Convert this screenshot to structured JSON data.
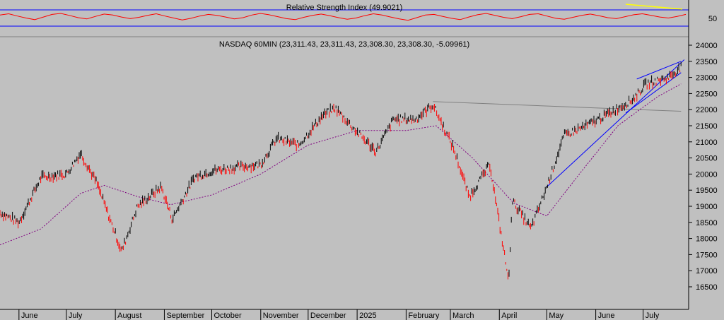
{
  "chart_data": [
    {
      "type": "line",
      "title": "Relative Strength Index (49.9021)",
      "indicator": "RSI",
      "current_value": 49.9021,
      "bands": [
        70,
        30
      ],
      "tick_labels": [
        "50"
      ],
      "colors": {
        "line": "#ff0000",
        "bands": "#0000ff",
        "trendline": "#ffff00"
      },
      "series": [
        {
          "name": "",
          "values": [
            58,
            62,
            55,
            49,
            44,
            52,
            60,
            63,
            57,
            50,
            46,
            54,
            61,
            58,
            52,
            47,
            51,
            57,
            62,
            55,
            49,
            43,
            48,
            55,
            60,
            57,
            52,
            46,
            50,
            58,
            63,
            59,
            53,
            47,
            44,
            51,
            57,
            61,
            56,
            50,
            45,
            49,
            56,
            62,
            58,
            52,
            46,
            42,
            50,
            58,
            60,
            54,
            48,
            44,
            52,
            59,
            63,
            57,
            51,
            47,
            53,
            60,
            62,
            55,
            48,
            45,
            51,
            57,
            61,
            56,
            50,
            47,
            53,
            59,
            62,
            57,
            52,
            49,
            54,
            60
          ]
        }
      ]
    },
    {
      "type": "line",
      "title": "NASDAQ 60MIN (23,311.43, 23,311.43, 23,308.30, 23,308.30, -5.09961)",
      "xlabel": "",
      "ylabel": "",
      "ylim": [
        16200,
        24200
      ],
      "yticks": [
        "24000",
        "23500",
        "23000",
        "22500",
        "22000",
        "21500",
        "21000",
        "20500",
        "20000",
        "19500",
        "19000",
        "18500",
        "18000",
        "17500",
        "17000",
        "16500"
      ],
      "x_labels": [
        "June",
        "July",
        "August",
        "September",
        "October",
        "November",
        "December",
        "2025",
        "February",
        "March",
        "April",
        "May",
        "June",
        "July"
      ],
      "grid": false,
      "colors": {
        "price": "#000000",
        "price_down": "#ff0000",
        "moving_average": "#800080",
        "trendlines": "#0000ff",
        "resistance": "#808080"
      },
      "series": [
        {
          "name": "",
          "x": [
            "2024-05-20",
            "2024-06-01",
            "2024-06-15",
            "2024-07-01",
            "2024-07-10",
            "2024-07-20",
            "2024-08-05",
            "2024-08-15",
            "2024-08-30",
            "2024-09-06",
            "2024-09-20",
            "2024-10-01",
            "2024-10-15",
            "2024-11-01",
            "2024-11-11",
            "2024-11-25",
            "2024-12-10",
            "2024-12-18",
            "2025-01-02",
            "2025-01-13",
            "2025-01-24",
            "2025-02-07",
            "2025-02-18",
            "2025-03-03",
            "2025-03-13",
            "2025-03-26",
            "2025-04-07",
            "2025-04-09",
            "2025-04-21",
            "2025-05-01",
            "2025-05-12",
            "2025-05-26",
            "2025-06-10",
            "2025-06-24",
            "2025-07-03",
            "2025-07-17",
            "2025-07-25"
          ],
          "values": [
            18800,
            18500,
            19900,
            20000,
            20650,
            19750,
            17600,
            19000,
            19600,
            18600,
            19900,
            20100,
            20200,
            20300,
            21100,
            20900,
            21800,
            22050,
            21250,
            20700,
            21700,
            21700,
            22150,
            20800,
            19300,
            20300,
            16650,
            19200,
            18300,
            19600,
            21200,
            21500,
            21900,
            22300,
            22800,
            23000,
            23310
          ]
        },
        {
          "name": "",
          "x": [
            "2024-05-20",
            "2024-06-15",
            "2024-07-10",
            "2024-07-25",
            "2024-08-15",
            "2024-09-05",
            "2024-10-01",
            "2024-11-01",
            "2024-12-01",
            "2025-01-01",
            "2025-02-01",
            "2025-02-20",
            "2025-03-15",
            "2025-04-10",
            "2025-05-01",
            "2025-05-20",
            "2025-06-15",
            "2025-07-10",
            "2025-07-25"
          ],
          "values": [
            17800,
            18300,
            19400,
            19650,
            19300,
            19050,
            19350,
            20000,
            20900,
            21350,
            21350,
            21500,
            20500,
            19100,
            18700,
            19900,
            21500,
            22400,
            22800
          ]
        }
      ],
      "trendlines": [
        {
          "name": "",
          "from": [
            "2025-02-18",
            22250
          ],
          "to": [
            "2025-07-25",
            21950
          ]
        },
        {
          "name": "",
          "from": [
            "2025-05-01",
            19600
          ],
          "to": [
            "2025-07-27",
            23550
          ]
        },
        {
          "name": "",
          "from": [
            "2025-06-20",
            21900
          ],
          "to": [
            "2025-07-25",
            23150
          ]
        },
        {
          "name": "",
          "from": [
            "2025-06-27",
            22950
          ],
          "to": [
            "2025-07-25",
            23500
          ]
        }
      ]
    }
  ]
}
